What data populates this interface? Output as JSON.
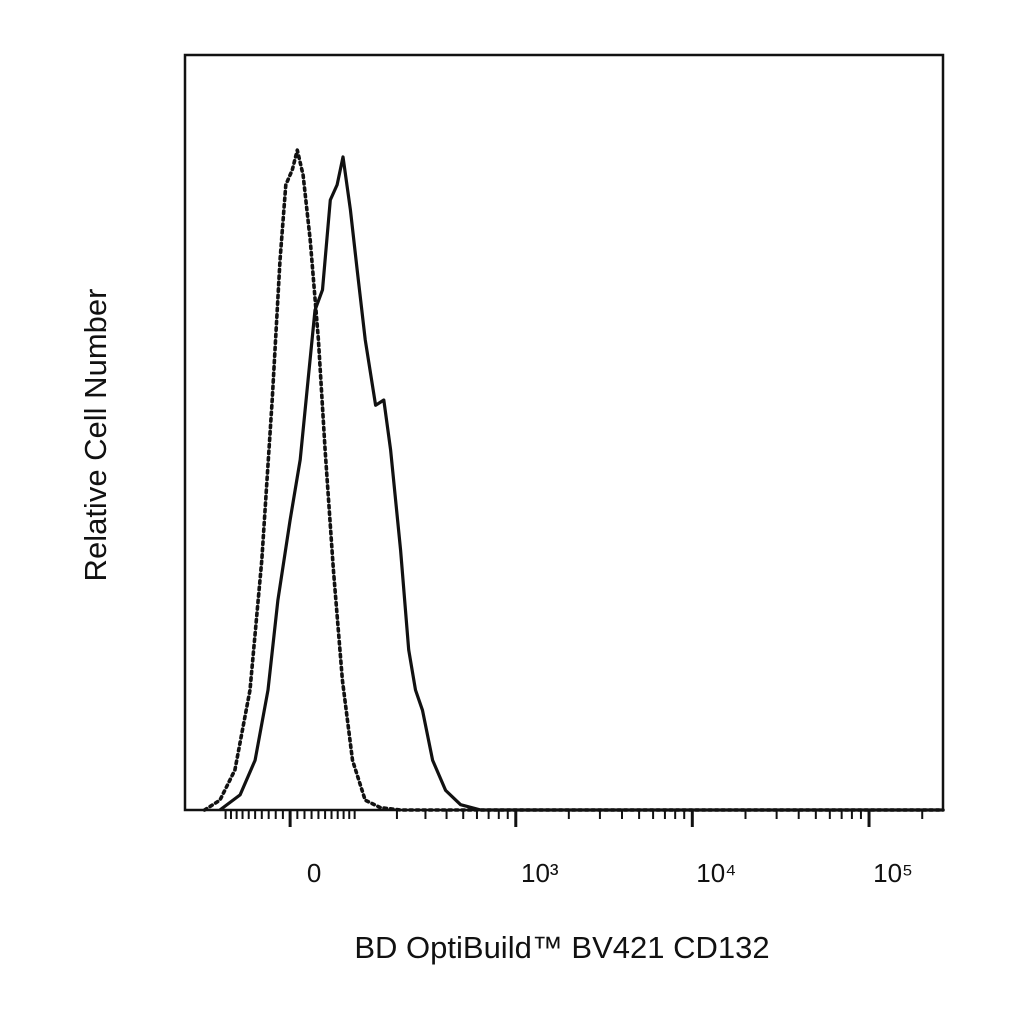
{
  "chart_data": {
    "type": "line",
    "xlabel": "BD OptiBuild™ BV421 CD132",
    "ylabel": "Relative Cell Number",
    "xscale": {
      "type": "arcsinh",
      "cofactor": 106
    },
    "xlim": [
      -195,
      262144
    ],
    "ylim": [
      0,
      100
    ],
    "xticks": [
      {
        "value": 0,
        "label": "0"
      },
      {
        "value": 1000,
        "label": "10³"
      },
      {
        "value": 10000,
        "label": "10⁴"
      },
      {
        "value": 100000,
        "label": "10⁵"
      }
    ],
    "xminorticks": [
      -100,
      -90,
      -80,
      -70,
      -60,
      -50,
      -40,
      -30,
      -20,
      -10,
      10,
      20,
      30,
      40,
      50,
      60,
      70,
      80,
      90,
      100,
      200,
      300,
      400,
      500,
      600,
      700,
      800,
      900,
      2000,
      3000,
      4000,
      5000,
      6000,
      7000,
      8000,
      9000,
      20000,
      30000,
      40000,
      50000,
      60000,
      70000,
      80000,
      90000,
      200000
    ],
    "series": [
      {
        "color": "#111111",
        "style": "dotted",
        "x": [
          -144,
          -111,
          -83,
          -58,
          -40,
          -25,
          -14,
          -6,
          3,
          10,
          18,
          28,
          40,
          50,
          63,
          78,
          96,
          121,
          156,
          211,
          262144
        ],
        "values": [
          0,
          1.3,
          5.3,
          15.9,
          33.1,
          54.3,
          72.8,
          82.8,
          84.8,
          87.4,
          84.1,
          75.5,
          62.3,
          47.7,
          31.8,
          17.2,
          6.6,
          1.3,
          0.3,
          0,
          0
        ]
      },
      {
        "color": "#111111",
        "style": "solid",
        "x": [
          -111,
          -74,
          -50,
          -31,
          -17,
          0,
          14,
          25,
          35,
          46,
          58,
          69,
          79,
          92,
          105,
          121,
          144,
          164,
          182,
          211,
          237,
          261,
          288,
          331,
          395,
          483,
          631,
          262144
        ],
        "values": [
          0,
          2.0,
          6.6,
          15.9,
          27.8,
          38.4,
          46.4,
          57.0,
          66.2,
          68.9,
          80.8,
          82.8,
          86.5,
          79.5,
          71.5,
          62.3,
          53.6,
          54.3,
          47.7,
          34.4,
          21.2,
          15.9,
          13.2,
          6.6,
          2.6,
          0.7,
          0,
          0
        ]
      }
    ]
  }
}
